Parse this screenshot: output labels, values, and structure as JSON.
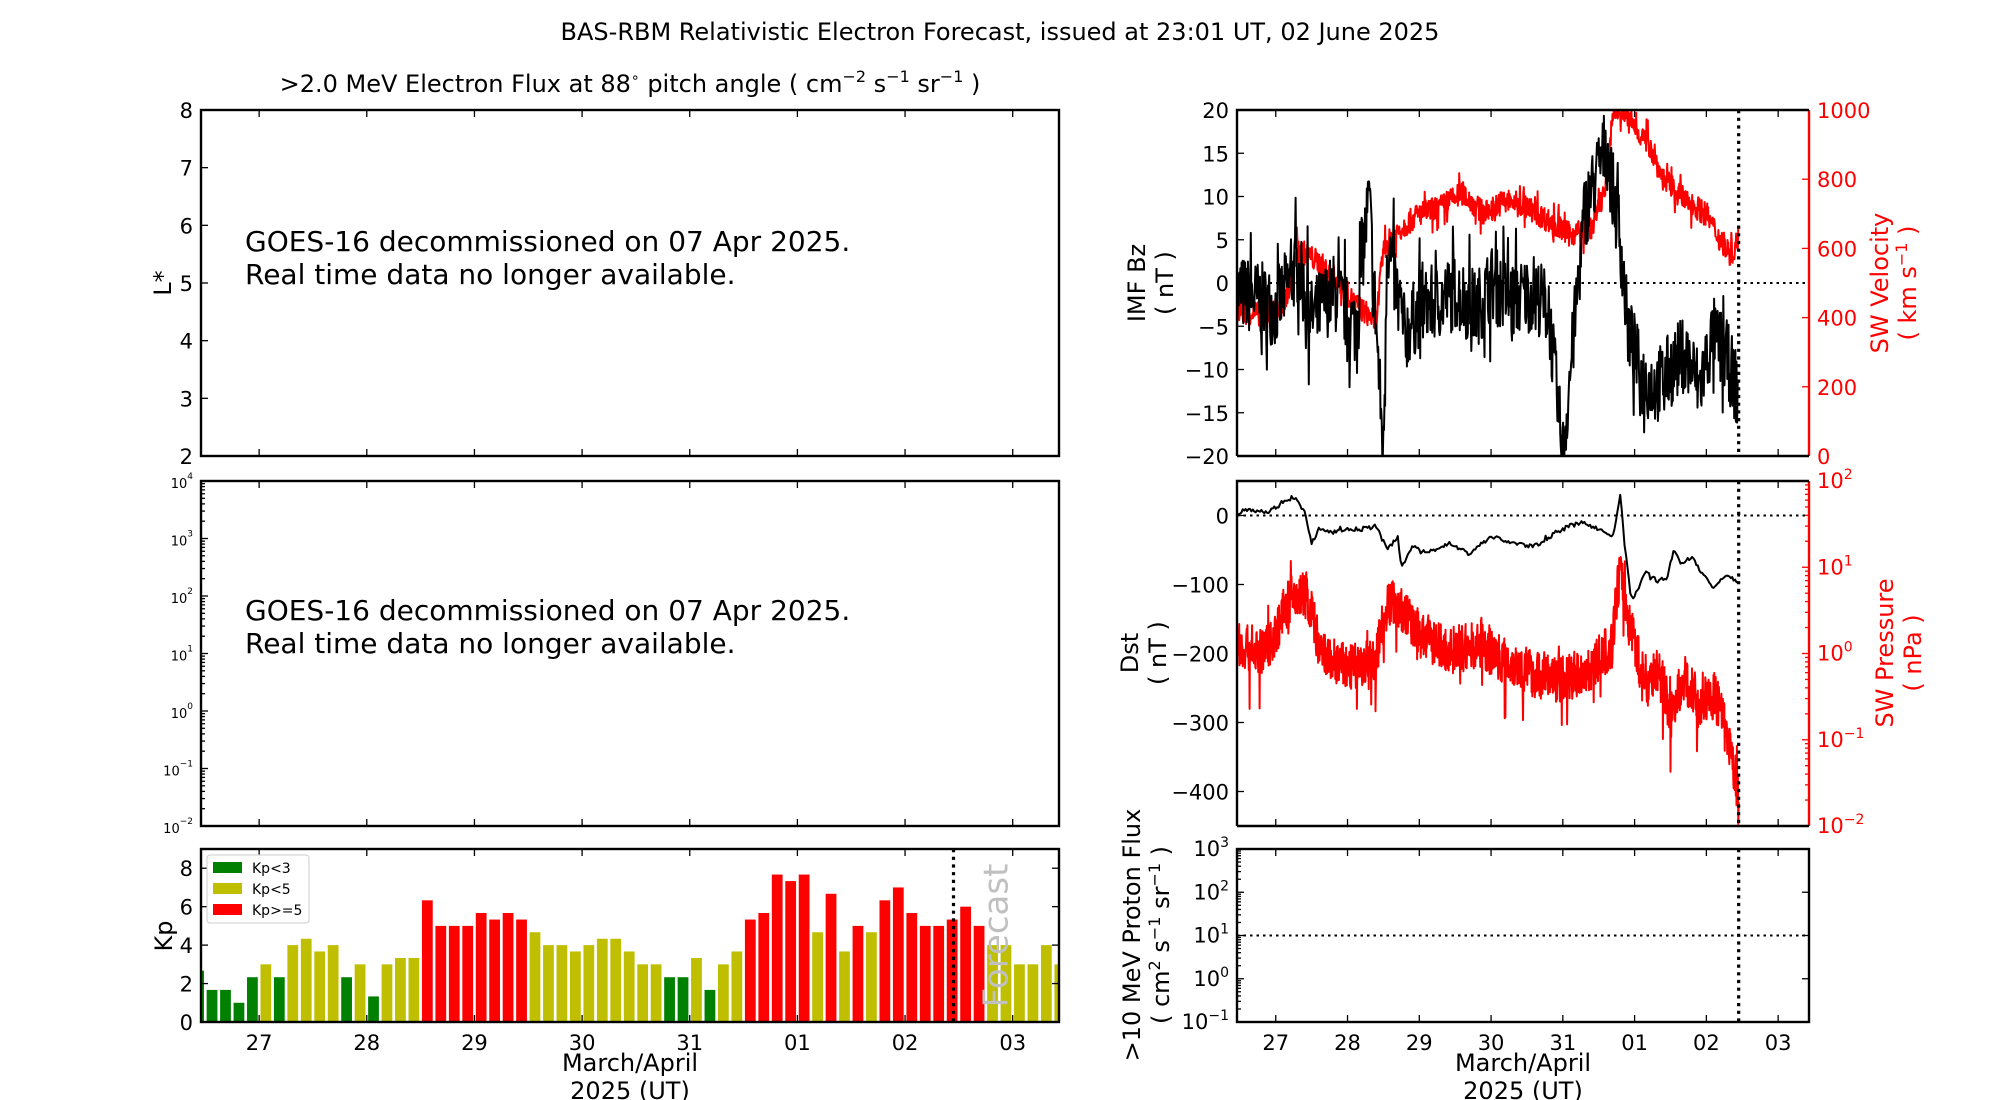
{
  "title": "BAS-RBM Relativistic Electron Forecast, issued at 23:01 UT, 02 June 2025",
  "colors": {
    "kp_low": "#008000",
    "kp_mid": "#bfbf00",
    "kp_high": "#ff0000",
    "secondary_axis": "#ff0000",
    "forecast_label": "#c0c0c0"
  },
  "x_axis": {
    "range_days": [
      26.46,
      34.43
    ],
    "now_marker_day": 33.45,
    "tick_days": [
      27,
      28,
      29,
      30,
      31,
      32,
      33,
      34
    ],
    "tick_labels": [
      "27",
      "28",
      "29",
      "30",
      "31",
      "01",
      "02",
      "03"
    ],
    "label_line1": "March/April",
    "label_line2": "2025 (UT)"
  },
  "chart_data": [
    {
      "id": "electron-flux-lstar",
      "type": "heatmap",
      "title_parts": {
        "pre": ">2.0 MeV Electron Flux at 88",
        "deg": "∘",
        "post": " pitch angle ( cm",
        "e1": "−2",
        "s": " s",
        "e2": "−1",
        "sr": " sr",
        "e3": "−1",
        "close": " )"
      },
      "ylabel": "L*",
      "ylim": [
        2,
        8
      ],
      "yticks": [
        "2",
        "3",
        "4",
        "5",
        "6",
        "7",
        "8"
      ],
      "message_line1": "GOES-16 decommissioned on 07 Apr 2025.",
      "message_line2": "Real time data no longer available."
    },
    {
      "id": "electron-flux-geo",
      "type": "line",
      "yscale": "log",
      "ylim": [
        0.01,
        10000
      ],
      "yticks_exp": [
        "−2",
        "−1",
        "0",
        "1",
        "2",
        "3",
        "4"
      ],
      "message_line1": "GOES-16 decommissioned on 07 Apr 2025.",
      "message_line2": "Real time data no longer available."
    },
    {
      "id": "kp",
      "type": "bar",
      "ylabel": "Kp",
      "ylim": [
        0,
        9
      ],
      "yticks": [
        "0",
        "2",
        "4",
        "6",
        "8"
      ],
      "bar_interval_hours": 3,
      "first_bar_start_day": 26.375,
      "values": [
        2.67,
        1.67,
        1.67,
        1.0,
        2.33,
        3.0,
        2.33,
        4.0,
        4.33,
        3.67,
        4.0,
        2.33,
        3.0,
        1.33,
        3.0,
        3.33,
        3.33,
        6.33,
        5.0,
        5.0,
        5.0,
        5.67,
        5.33,
        5.67,
        5.33,
        4.67,
        4.0,
        4.0,
        3.67,
        4.0,
        4.33,
        4.33,
        3.67,
        3.0,
        3.0,
        2.33,
        2.33,
        3.33,
        1.67,
        3.0,
        3.67,
        5.33,
        5.67,
        7.67,
        7.33,
        7.67,
        4.67,
        6.67,
        3.67,
        5.0,
        4.67,
        6.33,
        7.0,
        5.67,
        5.0,
        5.0,
        5.33,
        6.0,
        5.0,
        4.0,
        4.0,
        3.0,
        3.0,
        4.0,
        3.0
      ],
      "thresholds": {
        "low": 3,
        "high": 5
      },
      "legend": [
        {
          "label": "Kp<3",
          "color": "#008000"
        },
        {
          "label": "Kp<5",
          "color": "#bfbf00"
        },
        {
          "label": "Kp>=5",
          "color": "#ff0000"
        }
      ],
      "legend_position": "top-left",
      "forecast_label": "Forecast"
    },
    {
      "id": "imf-bz-sw-velocity",
      "type": "line",
      "ylabel_line1": "IMF Bz",
      "ylabel_line2": "( nT )",
      "ylim": [
        -20,
        20
      ],
      "yticks": [
        "−20",
        "−15",
        "−10",
        "−5",
        "0",
        "5",
        "10",
        "15",
        "20"
      ],
      "y2label_line1": "SW Velocity",
      "y2label_line2_pre": "( km s",
      "y2label_line2_exp": "−1",
      "y2label_line2_post": " )",
      "y2lim": [
        0,
        1000
      ],
      "y2ticks": [
        "0",
        "200",
        "400",
        "600",
        "800",
        "1000"
      ],
      "reference_line_y": 0,
      "series": [
        {
          "name": "IMF Bz (nT)",
          "color": "#000000",
          "x_days": [
            26.46,
            26.8,
            27.0,
            27.3,
            27.5,
            27.8,
            28.1,
            28.3,
            28.5,
            28.55,
            28.8,
            29.0,
            29.3,
            29.5,
            29.8,
            30.0,
            30.3,
            30.6,
            30.8,
            31.0,
            31.3,
            31.6,
            31.8,
            31.9,
            32.0,
            32.1,
            32.3,
            32.5,
            32.7,
            32.9,
            33.1,
            33.3,
            33.45
          ],
          "y": [
            -1,
            -2,
            -3,
            2,
            -4,
            -1,
            -5,
            10,
            -20,
            5,
            -6,
            -3,
            -2,
            -1,
            -3,
            0,
            -2,
            -1,
            -3,
            -20,
            8,
            16,
            5,
            -5,
            -8,
            -11,
            -12,
            -10,
            -8,
            -12,
            -6,
            -9,
            -13
          ]
        },
        {
          "name": "SW Velocity (km/s)",
          "color": "#ff0000",
          "x_days": [
            26.46,
            26.8,
            27.1,
            27.3,
            27.6,
            27.9,
            28.1,
            28.4,
            28.5,
            28.7,
            29.0,
            29.3,
            29.6,
            29.9,
            30.2,
            30.5,
            30.8,
            31.1,
            31.4,
            31.6,
            31.7,
            31.85,
            32.0,
            32.2,
            32.4,
            32.7,
            33.0,
            33.2,
            33.35,
            33.45
          ],
          "y": [
            420,
            410,
            420,
            600,
            560,
            500,
            440,
            390,
            600,
            650,
            700,
            720,
            760,
            700,
            740,
            720,
            680,
            640,
            660,
            780,
            1000,
            1000,
            950,
            900,
            800,
            740,
            700,
            620,
            580,
            630
          ]
        }
      ]
    },
    {
      "id": "dst-sw-pressure",
      "type": "line",
      "ylabel_line1": "Dst",
      "ylabel_line2": "( nT )",
      "ylim": [
        -450,
        50
      ],
      "yticks": [
        "−400",
        "−300",
        "−200",
        "−100",
        "0"
      ],
      "y2label_line1": "SW Pressure",
      "y2label_line2": "( nPa )",
      "y2scale": "log",
      "y2lim": [
        0.01,
        100
      ],
      "y2ticks_exp": [
        "−2",
        "−1",
        "0",
        "1",
        "2"
      ],
      "reference_line_y": 0,
      "series": [
        {
          "name": "Dst (nT)",
          "color": "#000000",
          "x_days": [
            26.46,
            26.55,
            26.7,
            26.9,
            27.1,
            27.25,
            27.4,
            27.5,
            27.6,
            27.75,
            28.0,
            28.2,
            28.4,
            28.55,
            28.7,
            28.75,
            28.9,
            29.1,
            29.4,
            29.7,
            30.0,
            30.3,
            30.6,
            30.9,
            31.1,
            31.3,
            31.5,
            31.7,
            31.8,
            31.85,
            31.95,
            32.05,
            32.15,
            32.3,
            32.45,
            32.55,
            32.65,
            32.8,
            32.95,
            33.1,
            33.3,
            33.45
          ],
          "y": [
            0,
            10,
            8,
            5,
            20,
            28,
            5,
            -40,
            -20,
            -25,
            -20,
            -20,
            -15,
            -50,
            -30,
            -75,
            -45,
            -55,
            -40,
            -55,
            -30,
            -40,
            -45,
            -25,
            -15,
            -10,
            -20,
            -30,
            30,
            -30,
            -120,
            -110,
            -80,
            -95,
            -90,
            -50,
            -70,
            -60,
            -85,
            -105,
            -85,
            -100
          ]
        },
        {
          "name": "SW Pressure (nPa)",
          "color": "#ff0000",
          "x_days": [
            26.46,
            26.8,
            27.0,
            27.2,
            27.4,
            27.6,
            28.0,
            28.4,
            28.6,
            29.0,
            29.4,
            29.8,
            30.2,
            30.6,
            31.0,
            31.4,
            31.7,
            31.8,
            31.9,
            32.1,
            32.3,
            32.5,
            32.7,
            32.9,
            33.1,
            33.3,
            33.45
          ],
          "y": [
            1.5,
            1.2,
            2.0,
            5,
            6,
            1.2,
            0.8,
            1.0,
            5,
            2,
            1.3,
            1.5,
            1.0,
            0.7,
            0.6,
            0.8,
            1.5,
            10,
            3,
            0.5,
            0.8,
            0.2,
            0.6,
            0.3,
            0.4,
            0.1,
            0.02
          ]
        }
      ]
    },
    {
      "id": "proton-flux",
      "type": "line",
      "ylabel_line1_pre": ">10 MeV Proton Flux",
      "ylabel_line2_pre": "( cm",
      "ylabel_line2_e1": "2",
      "ylabel_line2_s": " s",
      "ylabel_line2_e2": "−1",
      "ylabel_line2_sr": " sr",
      "ylabel_line2_e3": "−1",
      "ylabel_line2_close": " )",
      "yscale": "log",
      "ylim": [
        0.1,
        1000
      ],
      "yticks_exp": [
        "−1",
        "0",
        "1",
        "2",
        "3"
      ],
      "threshold_line_y": 10,
      "series": []
    }
  ]
}
